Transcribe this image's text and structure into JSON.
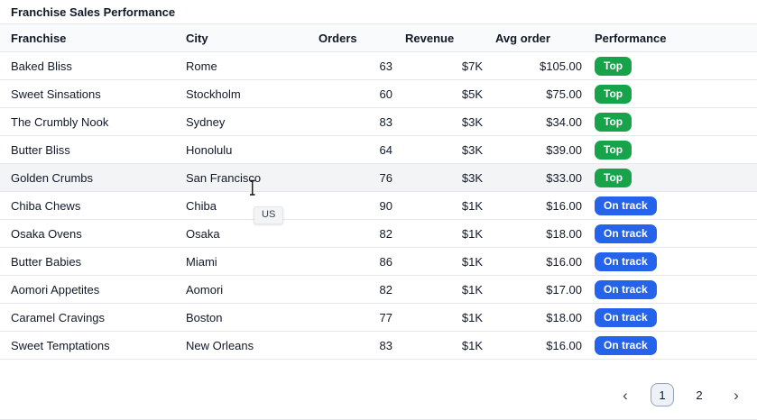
{
  "title": "Franchise Sales Performance",
  "table": {
    "columns": [
      "Franchise",
      "City",
      "Orders",
      "Revenue",
      "Avg order",
      "Performance"
    ],
    "rows": [
      {
        "franchise": "Baked Bliss",
        "city": "Rome",
        "orders": "63",
        "revenue": "$7K",
        "avg_order": "$105.00",
        "performance": "Top",
        "highlighted": false
      },
      {
        "franchise": "Sweet Sinsations",
        "city": "Stockholm",
        "orders": "60",
        "revenue": "$5K",
        "avg_order": "$75.00",
        "performance": "Top",
        "highlighted": false
      },
      {
        "franchise": "The Crumbly Nook",
        "city": "Sydney",
        "orders": "83",
        "revenue": "$3K",
        "avg_order": "$34.00",
        "performance": "Top",
        "highlighted": false
      },
      {
        "franchise": "Butter Bliss",
        "city": "Honolulu",
        "orders": "64",
        "revenue": "$3K",
        "avg_order": "$39.00",
        "performance": "Top",
        "highlighted": false
      },
      {
        "franchise": "Golden Crumbs",
        "city": "San Francisco",
        "orders": "76",
        "revenue": "$3K",
        "avg_order": "$33.00",
        "performance": "Top",
        "highlighted": true
      },
      {
        "franchise": "Chiba Chews",
        "city": "Chiba",
        "orders": "90",
        "revenue": "$1K",
        "avg_order": "$16.00",
        "performance": "On track",
        "highlighted": false
      },
      {
        "franchise": "Osaka Ovens",
        "city": "Osaka",
        "orders": "82",
        "revenue": "$1K",
        "avg_order": "$18.00",
        "performance": "On track",
        "highlighted": false
      },
      {
        "franchise": "Butter Babies",
        "city": "Miami",
        "orders": "86",
        "revenue": "$1K",
        "avg_order": "$16.00",
        "performance": "On track",
        "highlighted": false
      },
      {
        "franchise": "Aomori Appetites",
        "city": "Aomori",
        "orders": "82",
        "revenue": "$1K",
        "avg_order": "$17.00",
        "performance": "On track",
        "highlighted": false
      },
      {
        "franchise": "Caramel Cravings",
        "city": "Boston",
        "orders": "77",
        "revenue": "$1K",
        "avg_order": "$18.00",
        "performance": "On track",
        "highlighted": false
      },
      {
        "franchise": "Sweet Temptations",
        "city": "New Orleans",
        "orders": "83",
        "revenue": "$1K",
        "avg_order": "$16.00",
        "performance": "On track",
        "highlighted": false
      }
    ]
  },
  "colors": {
    "top_badge": "#16a34a",
    "on_track_badge": "#2563eb",
    "header_bg": "#f9fafb",
    "row_highlight": "#f3f4f6",
    "active_page_border": "#97a3b6"
  },
  "tooltip": {
    "text": "US"
  },
  "pagination": {
    "prev_icon": "‹",
    "next_icon": "›",
    "pages": [
      "1",
      "2"
    ],
    "active_page": "1"
  }
}
